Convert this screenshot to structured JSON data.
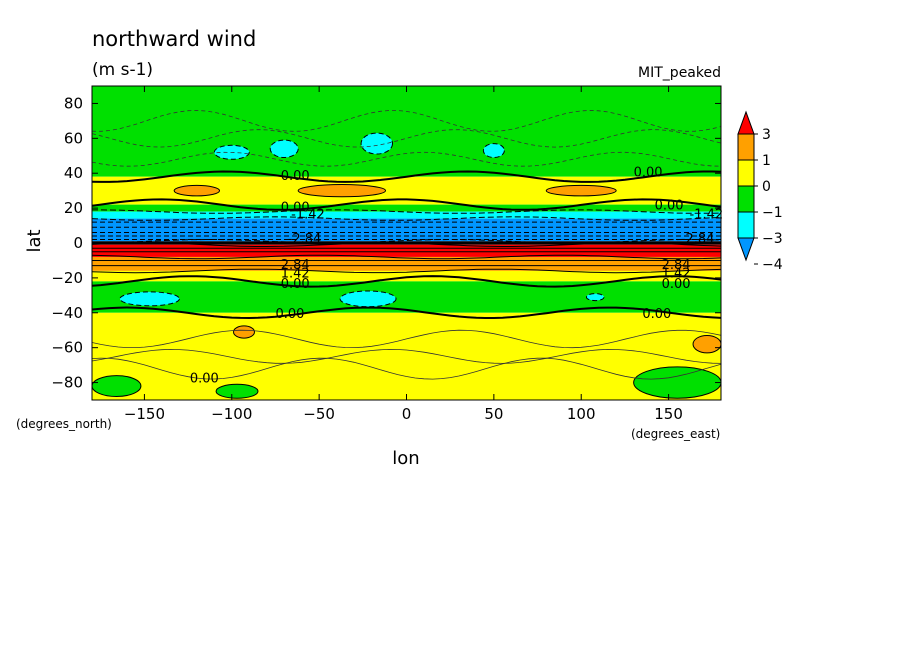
{
  "chart_data": {
    "type": "heatmap",
    "title": "northward wind",
    "subtitle": "(m s-1)",
    "source_label": "MIT_peaked",
    "xlabel": "lon",
    "ylabel": "lat",
    "x_units": "(degrees_east)",
    "y_units": "(degrees_north)",
    "xlim": [
      -180,
      180
    ],
    "ylim": [
      -90,
      90
    ],
    "x_ticks": [
      -150,
      -100,
      -50,
      0,
      50,
      100,
      150
    ],
    "y_ticks": [
      80,
      60,
      40,
      20,
      0,
      -20,
      -40,
      -60,
      -80
    ],
    "x_tick_labels": [
      "−150",
      "−100",
      "−50",
      "0",
      "50",
      "100",
      "150"
    ],
    "y_tick_labels": [
      "80",
      "60",
      "40",
      "20",
      "0",
      "−20",
      "−40",
      "−60",
      "−80"
    ],
    "colorbar": {
      "tick_labels": [
        "3",
        "1",
        "0",
        "−1",
        "−3",
        "−4"
      ],
      "bins": [
        {
          "color": "#ff0000"
        },
        {
          "color": "#ffa000"
        },
        {
          "color": "#ffff00"
        },
        {
          "color": "#00e000"
        },
        {
          "color": "#00ffff"
        },
        {
          "color": "#0096ff"
        }
      ]
    },
    "zonal_bands": [
      {
        "lat_from": 90,
        "lat_to": 38,
        "level": "-1 to 0",
        "color": "#00e000"
      },
      {
        "lat_from": 38,
        "lat_to": 22,
        "level": "0 to 1",
        "color": "#ffff00"
      },
      {
        "lat_from": 22,
        "lat_to": 18,
        "level": "-1 to 0",
        "color": "#00e000"
      },
      {
        "lat_from": 18,
        "lat_to": 14,
        "level": "-3 to -1",
        "color": "#00ffff"
      },
      {
        "lat_from": 14,
        "lat_to": 1,
        "level": "-4 to -3",
        "color": "#0096ff"
      },
      {
        "lat_from": 1,
        "lat_to": -1,
        "level": "below -4",
        "color": "#000000"
      },
      {
        "lat_from": -1,
        "lat_to": -8,
        "level": "above 3",
        "color": "#ff0000"
      },
      {
        "lat_from": -8,
        "lat_to": -16,
        "level": "1 to 3",
        "color": "#ffa000"
      },
      {
        "lat_from": -16,
        "lat_to": -22,
        "level": "0 to 1",
        "color": "#ffff00"
      },
      {
        "lat_from": -22,
        "lat_to": -40,
        "level": "-1 to 0",
        "color": "#00e000"
      },
      {
        "lat_from": -40,
        "lat_to": -90,
        "level": "0 to 1",
        "color": "#ffff00"
      }
    ],
    "regions": [
      {
        "shape": "ellipse",
        "lon": -100,
        "lat": 52,
        "dlon": 10,
        "dlat": 4,
        "level": "-3 to -1",
        "color": "#00ffff"
      },
      {
        "shape": "ellipse",
        "lon": -70,
        "lat": 54,
        "dlon": 8,
        "dlat": 5,
        "level": "-3 to -1",
        "color": "#00ffff"
      },
      {
        "shape": "ellipse",
        "lon": -17,
        "lat": 57,
        "dlon": 9,
        "dlat": 6,
        "level": "-3 to -1",
        "color": "#00ffff"
      },
      {
        "shape": "ellipse",
        "lon": 50,
        "lat": 53,
        "dlon": 6,
        "dlat": 4,
        "level": "-3 to -1",
        "color": "#00ffff"
      },
      {
        "shape": "ellipse",
        "lon": -120,
        "lat": 30,
        "dlon": 13,
        "dlat": 3,
        "level": "1 to 3",
        "color": "#ffa000"
      },
      {
        "shape": "ellipse",
        "lon": -37,
        "lat": 30,
        "dlon": 25,
        "dlat": 3.5,
        "level": "1 to 3",
        "color": "#ffa000"
      },
      {
        "shape": "ellipse",
        "lon": 100,
        "lat": 30,
        "dlon": 20,
        "dlat": 3,
        "level": "1 to 3",
        "color": "#ffa000"
      },
      {
        "shape": "ellipse",
        "lon": -147,
        "lat": -32,
        "dlon": 17,
        "dlat": 4,
        "level": "-3 to -1",
        "color": "#00ffff"
      },
      {
        "shape": "ellipse",
        "lon": -22,
        "lat": -32,
        "dlon": 16,
        "dlat": 4.5,
        "level": "-3 to -1",
        "color": "#00ffff"
      },
      {
        "shape": "ellipse",
        "lon": 108,
        "lat": -31,
        "dlon": 5,
        "dlat": 2,
        "level": "-3 to -1",
        "color": "#00ffff"
      },
      {
        "shape": "ellipse",
        "lon": -93,
        "lat": -51,
        "dlon": 6,
        "dlat": 3.5,
        "level": "1 to 3",
        "color": "#ffa000"
      },
      {
        "shape": "ellipse",
        "lon": 172,
        "lat": -58,
        "dlon": 8,
        "dlat": 5,
        "level": "1 to 3",
        "color": "#ffa000"
      },
      {
        "shape": "ellipse",
        "lon": -166,
        "lat": -82,
        "dlon": 14,
        "dlat": 6,
        "level": "-1 to 0",
        "color": "#00e000"
      },
      {
        "shape": "ellipse",
        "lon": -97,
        "lat": -85,
        "dlon": 12,
        "dlat": 4,
        "level": "-1 to 0",
        "color": "#00e000"
      },
      {
        "shape": "ellipse",
        "lon": 155,
        "lat": -80,
        "dlon": 25,
        "dlat": 9,
        "level": "-1 to 0",
        "color": "#00e000"
      }
    ],
    "contour_labels": [
      {
        "text": "0.00",
        "lon": -72,
        "lat": 39
      },
      {
        "text": "0.00",
        "lon": 130,
        "lat": 41
      },
      {
        "text": "0.00",
        "lon": -72,
        "lat": 21
      },
      {
        "text": "0.00",
        "lon": 142,
        "lat": 22
      },
      {
        "text": "-1.42",
        "lon": -66,
        "lat": 17
      },
      {
        "text": "-1.42",
        "lon": 162,
        "lat": 17
      },
      {
        "text": "-2.84",
        "lon": -68,
        "lat": 3
      },
      {
        "text": "-2.84",
        "lon": 157,
        "lat": 3
      },
      {
        "text": "2.84",
        "lon": -72,
        "lat": -12
      },
      {
        "text": "2.84",
        "lon": 146,
        "lat": -12
      },
      {
        "text": "1.42",
        "lon": -72,
        "lat": -17
      },
      {
        "text": "1.42",
        "lon": 146,
        "lat": -17
      },
      {
        "text": "0.00",
        "lon": -72,
        "lat": -23
      },
      {
        "text": "0.00",
        "lon": 146,
        "lat": -23
      },
      {
        "text": "0.00",
        "lon": -75,
        "lat": -40
      },
      {
        "text": "0.00",
        "lon": 135,
        "lat": -40
      },
      {
        "text": "0.00",
        "lon": -124,
        "lat": -77
      }
    ]
  }
}
